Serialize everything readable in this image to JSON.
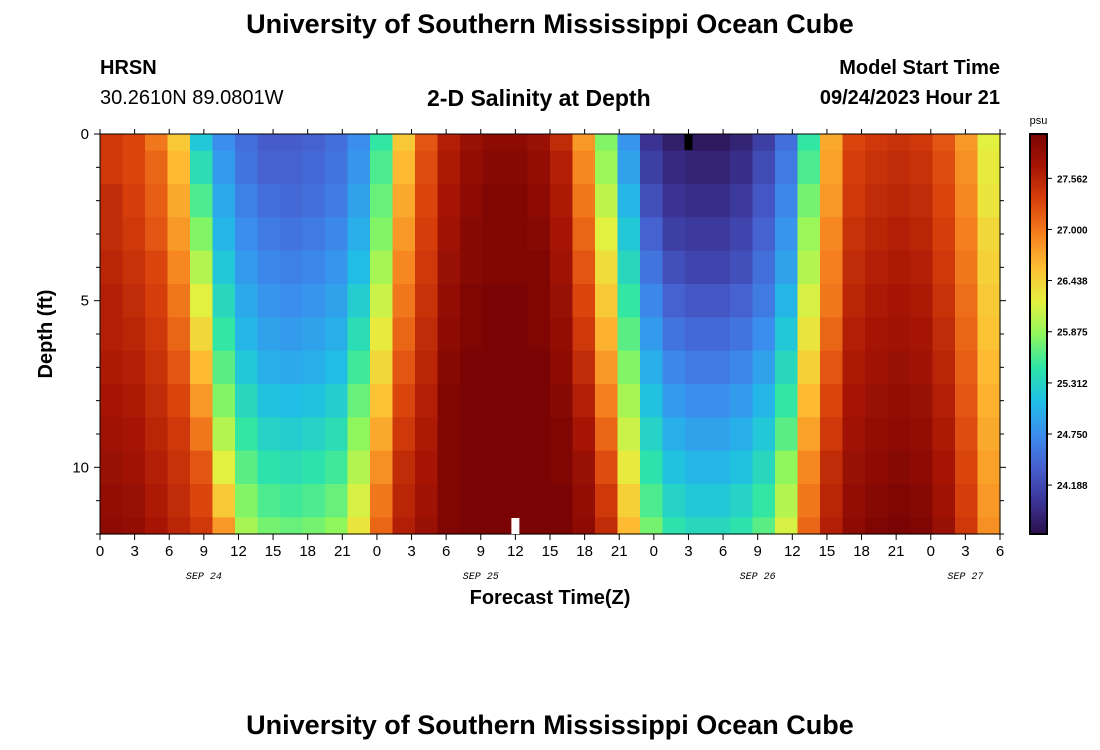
{
  "header": {
    "title_top": "University of Southern Mississippi Ocean Cube",
    "title_bottom": "University of Southern Mississippi Ocean Cube",
    "station": "HRSN",
    "coords": "30.2610N  89.0801W",
    "chart_title": "2-D Salinity at Depth",
    "model_label": "Model Start Time",
    "model_time": "09/24/2023 Hour 21"
  },
  "chart_data": {
    "type": "heatmap",
    "title": "2-D Salinity at Depth",
    "xlabel": "Forecast Time(Z)",
    "ylabel": "Depth (ft)",
    "x_range_hours": [
      0,
      78
    ],
    "y_range_ft": [
      0,
      12
    ],
    "x_ticks": [
      "0",
      "3",
      "6",
      "9",
      "12",
      "15",
      "18",
      "21",
      "0",
      "3",
      "6",
      "9",
      "12",
      "15",
      "18",
      "21",
      "0",
      "3",
      "6",
      "9",
      "12",
      "15",
      "18",
      "21",
      "0",
      "3",
      "6"
    ],
    "y_ticks": [
      "0",
      "5",
      "10"
    ],
    "date_labels": [
      {
        "hour": 9,
        "label": "SEP 24"
      },
      {
        "hour": 33,
        "label": "SEP 25"
      },
      {
        "hour": 57,
        "label": "SEP 26"
      },
      {
        "hour": 75,
        "label": "SEP 27"
      }
    ],
    "colorbar": {
      "unit": "psu",
      "min": 23.65,
      "max": 28.05,
      "ticks": [
        "27.562",
        "27.000",
        "26.438",
        "25.875",
        "25.312",
        "24.750",
        "24.188"
      ]
    },
    "colors": [
      "#2b0f4a",
      "#3b3598",
      "#4660cf",
      "#3b8eee",
      "#1fbfe6",
      "#2ee5a7",
      "#8ff75c",
      "#e6f03f",
      "#fdbd33",
      "#f57f1e",
      "#d9420c",
      "#a81504",
      "#7a0403"
    ],
    "depths_ft": [
      0,
      1,
      2,
      3,
      4,
      5,
      6,
      7,
      8,
      9,
      10,
      11,
      12
    ],
    "salinity_by_depth": [
      [
        27.4,
        27.3,
        27.0,
        26.5,
        25.2,
        24.75,
        24.5,
        24.35,
        24.35,
        24.4,
        24.5,
        24.75,
        25.5,
        26.5,
        27.2,
        27.6,
        27.8,
        27.9,
        27.9,
        27.8,
        27.5,
        26.8,
        25.8,
        24.8,
        24.0,
        23.8,
        23.75,
        23.75,
        23.85,
        24.1,
        24.5,
        25.5,
        26.7,
        27.3,
        27.4,
        27.45,
        27.4,
        27.2,
        26.8,
        26.2
      ],
      [
        27.4,
        27.3,
        27.1,
        26.6,
        25.4,
        24.85,
        24.55,
        24.4,
        24.4,
        24.45,
        24.55,
        24.8,
        25.6,
        26.6,
        27.25,
        27.65,
        27.85,
        27.95,
        27.95,
        27.85,
        27.6,
        26.9,
        25.9,
        24.9,
        24.1,
        23.9,
        23.85,
        23.85,
        23.95,
        24.2,
        24.6,
        25.6,
        26.75,
        27.35,
        27.45,
        27.5,
        27.45,
        27.25,
        26.85,
        26.25
      ],
      [
        27.5,
        27.35,
        27.15,
        26.7,
        25.6,
        24.95,
        24.65,
        24.5,
        24.45,
        24.5,
        24.6,
        24.9,
        25.7,
        26.7,
        27.3,
        27.7,
        27.9,
        28.0,
        28.0,
        27.9,
        27.65,
        27.0,
        26.05,
        25.05,
        24.25,
        24.0,
        23.95,
        23.95,
        24.05,
        24.3,
        24.7,
        25.75,
        26.8,
        27.4,
        27.5,
        27.55,
        27.5,
        27.3,
        26.9,
        26.3
      ],
      [
        27.5,
        27.4,
        27.2,
        26.8,
        25.8,
        25.05,
        24.75,
        24.6,
        24.55,
        24.6,
        24.7,
        25.0,
        25.8,
        26.8,
        27.35,
        27.75,
        27.95,
        28.0,
        28.0,
        27.95,
        27.7,
        27.1,
        26.2,
        25.2,
        24.4,
        24.1,
        24.05,
        24.05,
        24.15,
        24.4,
        24.8,
        25.9,
        26.9,
        27.45,
        27.55,
        27.6,
        27.55,
        27.35,
        26.95,
        26.4
      ],
      [
        27.55,
        27.45,
        27.3,
        26.9,
        26.0,
        25.2,
        24.85,
        24.7,
        24.65,
        24.7,
        24.8,
        25.1,
        25.95,
        26.9,
        27.4,
        27.8,
        27.95,
        28.0,
        28.0,
        28.0,
        27.75,
        27.2,
        26.35,
        25.35,
        24.55,
        24.25,
        24.15,
        24.15,
        24.25,
        24.5,
        24.9,
        26.0,
        26.95,
        27.5,
        27.6,
        27.65,
        27.6,
        27.4,
        27.0,
        26.45
      ],
      [
        27.6,
        27.5,
        27.35,
        27.0,
        26.2,
        25.35,
        24.95,
        24.8,
        24.75,
        24.8,
        24.9,
        25.25,
        26.1,
        27.0,
        27.45,
        27.85,
        28.0,
        28.05,
        28.05,
        28.0,
        27.8,
        27.3,
        26.5,
        25.5,
        24.7,
        24.4,
        24.3,
        24.3,
        24.4,
        24.6,
        25.05,
        26.15,
        27.0,
        27.55,
        27.65,
        27.7,
        27.65,
        27.45,
        27.05,
        26.5
      ],
      [
        27.6,
        27.55,
        27.4,
        27.1,
        26.4,
        25.5,
        25.05,
        24.9,
        24.85,
        24.9,
        25.0,
        25.4,
        26.25,
        27.1,
        27.5,
        27.9,
        28.0,
        28.05,
        28.05,
        28.0,
        27.85,
        27.4,
        26.65,
        25.65,
        24.85,
        24.55,
        24.45,
        24.45,
        24.55,
        24.75,
        25.2,
        26.3,
        27.1,
        27.6,
        27.7,
        27.75,
        27.7,
        27.5,
        27.1,
        26.55
      ],
      [
        27.65,
        27.6,
        27.45,
        27.2,
        26.6,
        25.65,
        25.2,
        25.0,
        24.95,
        25.0,
        25.1,
        25.55,
        26.4,
        27.2,
        27.55,
        27.95,
        28.05,
        28.05,
        28.05,
        28.05,
        27.9,
        27.5,
        26.8,
        25.8,
        25.0,
        24.7,
        24.6,
        24.6,
        24.7,
        24.9,
        25.35,
        26.45,
        27.2,
        27.65,
        27.75,
        27.8,
        27.75,
        27.55,
        27.15,
        26.6
      ],
      [
        27.7,
        27.65,
        27.5,
        27.3,
        26.8,
        25.8,
        25.35,
        25.15,
        25.1,
        25.15,
        25.25,
        25.7,
        26.55,
        27.3,
        27.6,
        28.0,
        28.05,
        28.05,
        28.05,
        28.05,
        27.95,
        27.6,
        26.95,
        25.95,
        25.15,
        24.85,
        24.75,
        24.75,
        24.85,
        25.05,
        25.5,
        26.6,
        27.3,
        27.7,
        27.8,
        27.85,
        27.8,
        27.6,
        27.2,
        26.65
      ],
      [
        27.75,
        27.7,
        27.55,
        27.4,
        27.0,
        26.0,
        25.5,
        25.3,
        25.25,
        25.3,
        25.4,
        25.85,
        26.7,
        27.4,
        27.65,
        28.0,
        28.05,
        28.05,
        28.05,
        28.05,
        28.0,
        27.7,
        27.1,
        26.1,
        25.3,
        25.0,
        24.9,
        24.9,
        25.0,
        25.2,
        25.65,
        26.75,
        27.4,
        27.75,
        27.85,
        27.9,
        27.85,
        27.65,
        27.25,
        26.7
      ],
      [
        27.8,
        27.75,
        27.6,
        27.45,
        27.2,
        26.2,
        25.65,
        25.45,
        25.4,
        25.45,
        25.55,
        26.0,
        26.85,
        27.5,
        27.7,
        28.0,
        28.05,
        28.05,
        28.05,
        28.05,
        28.0,
        27.8,
        27.25,
        26.25,
        25.45,
        25.15,
        25.05,
        25.05,
        25.15,
        25.35,
        25.85,
        26.9,
        27.5,
        27.8,
        27.9,
        27.95,
        27.9,
        27.7,
        27.3,
        26.75
      ],
      [
        27.85,
        27.8,
        27.65,
        27.5,
        27.3,
        26.5,
        25.8,
        25.6,
        25.55,
        25.6,
        25.7,
        26.15,
        27.0,
        27.55,
        27.75,
        28.0,
        28.05,
        28.05,
        28.05,
        28.05,
        28.05,
        27.85,
        27.4,
        26.45,
        25.6,
        25.3,
        25.2,
        25.2,
        25.3,
        25.5,
        26.0,
        27.0,
        27.55,
        27.85,
        27.95,
        28.0,
        27.95,
        27.75,
        27.35,
        26.8
      ],
      [
        27.9,
        27.85,
        27.7,
        27.55,
        27.4,
        26.8,
        25.95,
        25.75,
        25.7,
        25.75,
        25.85,
        26.3,
        27.1,
        27.6,
        27.8,
        28.0,
        28.05,
        28.05,
        28.05,
        28.05,
        28.05,
        27.9,
        27.5,
        26.6,
        25.75,
        25.45,
        25.35,
        25.35,
        25.45,
        25.65,
        26.15,
        27.1,
        27.6,
        27.9,
        28.0,
        28.05,
        28.0,
        27.8,
        27.4,
        26.85
      ]
    ],
    "markers": [
      {
        "name": "current-time-marker",
        "hour": 51,
        "color": "#000000"
      },
      {
        "name": "reference-time-marker",
        "hour": 36,
        "color": "#ffffff"
      }
    ]
  }
}
